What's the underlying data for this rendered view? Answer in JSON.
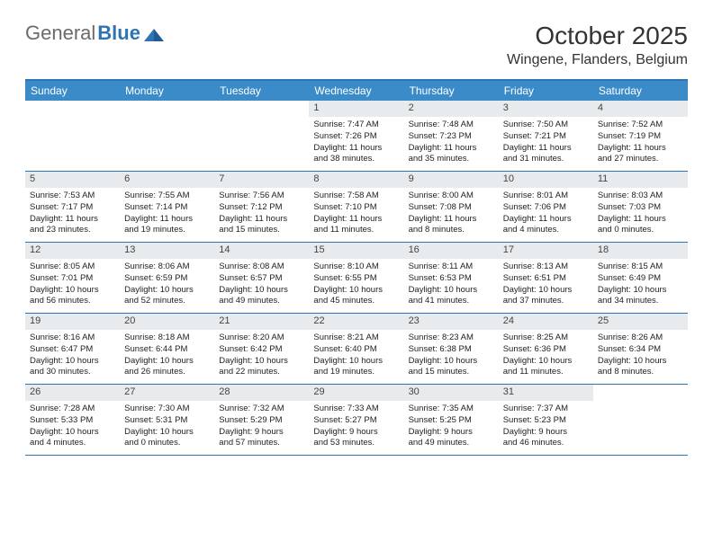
{
  "brand": {
    "part1": "General",
    "part2": "Blue"
  },
  "title": "October 2025",
  "location": "Wingene, Flanders, Belgium",
  "colors": {
    "header_bg": "#3b8bc9",
    "border": "#2e74b5",
    "daynum_bg": "#e8ebed",
    "text": "#222222",
    "title_text": "#333333"
  },
  "weekdays": [
    "Sunday",
    "Monday",
    "Tuesday",
    "Wednesday",
    "Thursday",
    "Friday",
    "Saturday"
  ],
  "weeks": [
    [
      {
        "n": "",
        "empty": true
      },
      {
        "n": "",
        "empty": true
      },
      {
        "n": "",
        "empty": true
      },
      {
        "n": "1",
        "sr": "Sunrise: 7:47 AM",
        "ss": "Sunset: 7:26 PM",
        "dl1": "Daylight: 11 hours",
        "dl2": "and 38 minutes."
      },
      {
        "n": "2",
        "sr": "Sunrise: 7:48 AM",
        "ss": "Sunset: 7:23 PM",
        "dl1": "Daylight: 11 hours",
        "dl2": "and 35 minutes."
      },
      {
        "n": "3",
        "sr": "Sunrise: 7:50 AM",
        "ss": "Sunset: 7:21 PM",
        "dl1": "Daylight: 11 hours",
        "dl2": "and 31 minutes."
      },
      {
        "n": "4",
        "sr": "Sunrise: 7:52 AM",
        "ss": "Sunset: 7:19 PM",
        "dl1": "Daylight: 11 hours",
        "dl2": "and 27 minutes."
      }
    ],
    [
      {
        "n": "5",
        "sr": "Sunrise: 7:53 AM",
        "ss": "Sunset: 7:17 PM",
        "dl1": "Daylight: 11 hours",
        "dl2": "and 23 minutes."
      },
      {
        "n": "6",
        "sr": "Sunrise: 7:55 AM",
        "ss": "Sunset: 7:14 PM",
        "dl1": "Daylight: 11 hours",
        "dl2": "and 19 minutes."
      },
      {
        "n": "7",
        "sr": "Sunrise: 7:56 AM",
        "ss": "Sunset: 7:12 PM",
        "dl1": "Daylight: 11 hours",
        "dl2": "and 15 minutes."
      },
      {
        "n": "8",
        "sr": "Sunrise: 7:58 AM",
        "ss": "Sunset: 7:10 PM",
        "dl1": "Daylight: 11 hours",
        "dl2": "and 11 minutes."
      },
      {
        "n": "9",
        "sr": "Sunrise: 8:00 AM",
        "ss": "Sunset: 7:08 PM",
        "dl1": "Daylight: 11 hours",
        "dl2": "and 8 minutes."
      },
      {
        "n": "10",
        "sr": "Sunrise: 8:01 AM",
        "ss": "Sunset: 7:06 PM",
        "dl1": "Daylight: 11 hours",
        "dl2": "and 4 minutes."
      },
      {
        "n": "11",
        "sr": "Sunrise: 8:03 AM",
        "ss": "Sunset: 7:03 PM",
        "dl1": "Daylight: 11 hours",
        "dl2": "and 0 minutes."
      }
    ],
    [
      {
        "n": "12",
        "sr": "Sunrise: 8:05 AM",
        "ss": "Sunset: 7:01 PM",
        "dl1": "Daylight: 10 hours",
        "dl2": "and 56 minutes."
      },
      {
        "n": "13",
        "sr": "Sunrise: 8:06 AM",
        "ss": "Sunset: 6:59 PM",
        "dl1": "Daylight: 10 hours",
        "dl2": "and 52 minutes."
      },
      {
        "n": "14",
        "sr": "Sunrise: 8:08 AM",
        "ss": "Sunset: 6:57 PM",
        "dl1": "Daylight: 10 hours",
        "dl2": "and 49 minutes."
      },
      {
        "n": "15",
        "sr": "Sunrise: 8:10 AM",
        "ss": "Sunset: 6:55 PM",
        "dl1": "Daylight: 10 hours",
        "dl2": "and 45 minutes."
      },
      {
        "n": "16",
        "sr": "Sunrise: 8:11 AM",
        "ss": "Sunset: 6:53 PM",
        "dl1": "Daylight: 10 hours",
        "dl2": "and 41 minutes."
      },
      {
        "n": "17",
        "sr": "Sunrise: 8:13 AM",
        "ss": "Sunset: 6:51 PM",
        "dl1": "Daylight: 10 hours",
        "dl2": "and 37 minutes."
      },
      {
        "n": "18",
        "sr": "Sunrise: 8:15 AM",
        "ss": "Sunset: 6:49 PM",
        "dl1": "Daylight: 10 hours",
        "dl2": "and 34 minutes."
      }
    ],
    [
      {
        "n": "19",
        "sr": "Sunrise: 8:16 AM",
        "ss": "Sunset: 6:47 PM",
        "dl1": "Daylight: 10 hours",
        "dl2": "and 30 minutes."
      },
      {
        "n": "20",
        "sr": "Sunrise: 8:18 AM",
        "ss": "Sunset: 6:44 PM",
        "dl1": "Daylight: 10 hours",
        "dl2": "and 26 minutes."
      },
      {
        "n": "21",
        "sr": "Sunrise: 8:20 AM",
        "ss": "Sunset: 6:42 PM",
        "dl1": "Daylight: 10 hours",
        "dl2": "and 22 minutes."
      },
      {
        "n": "22",
        "sr": "Sunrise: 8:21 AM",
        "ss": "Sunset: 6:40 PM",
        "dl1": "Daylight: 10 hours",
        "dl2": "and 19 minutes."
      },
      {
        "n": "23",
        "sr": "Sunrise: 8:23 AM",
        "ss": "Sunset: 6:38 PM",
        "dl1": "Daylight: 10 hours",
        "dl2": "and 15 minutes."
      },
      {
        "n": "24",
        "sr": "Sunrise: 8:25 AM",
        "ss": "Sunset: 6:36 PM",
        "dl1": "Daylight: 10 hours",
        "dl2": "and 11 minutes."
      },
      {
        "n": "25",
        "sr": "Sunrise: 8:26 AM",
        "ss": "Sunset: 6:34 PM",
        "dl1": "Daylight: 10 hours",
        "dl2": "and 8 minutes."
      }
    ],
    [
      {
        "n": "26",
        "sr": "Sunrise: 7:28 AM",
        "ss": "Sunset: 5:33 PM",
        "dl1": "Daylight: 10 hours",
        "dl2": "and 4 minutes."
      },
      {
        "n": "27",
        "sr": "Sunrise: 7:30 AM",
        "ss": "Sunset: 5:31 PM",
        "dl1": "Daylight: 10 hours",
        "dl2": "and 0 minutes."
      },
      {
        "n": "28",
        "sr": "Sunrise: 7:32 AM",
        "ss": "Sunset: 5:29 PM",
        "dl1": "Daylight: 9 hours",
        "dl2": "and 57 minutes."
      },
      {
        "n": "29",
        "sr": "Sunrise: 7:33 AM",
        "ss": "Sunset: 5:27 PM",
        "dl1": "Daylight: 9 hours",
        "dl2": "and 53 minutes."
      },
      {
        "n": "30",
        "sr": "Sunrise: 7:35 AM",
        "ss": "Sunset: 5:25 PM",
        "dl1": "Daylight: 9 hours",
        "dl2": "and 49 minutes."
      },
      {
        "n": "31",
        "sr": "Sunrise: 7:37 AM",
        "ss": "Sunset: 5:23 PM",
        "dl1": "Daylight: 9 hours",
        "dl2": "and 46 minutes."
      },
      {
        "n": "",
        "empty": true
      }
    ]
  ]
}
